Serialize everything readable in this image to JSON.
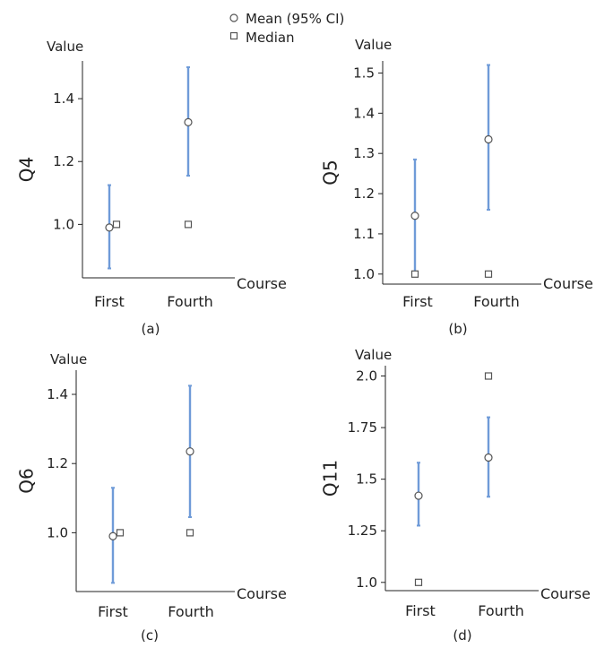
{
  "legend": {
    "mean_label": "Mean (95% CI)",
    "median_label": "Median",
    "placement": "top-center"
  },
  "colors": {
    "ci": "#6f9bd8",
    "axis": "#222222",
    "marker_edge": "#555555"
  },
  "chart_data": [
    {
      "type": "scatter",
      "panel_label": "(a)",
      "ylabel": "Q4",
      "axis_title": "Value",
      "xlabel": "Course",
      "categories": [
        "First",
        "Fourth"
      ],
      "ylim": [
        0.83,
        1.52
      ],
      "yticks": [
        1.0,
        1.2,
        1.4
      ],
      "ytick_labels": [
        "1.0",
        "1.2",
        "1.4"
      ],
      "mean": [
        0.99,
        1.325
      ],
      "ci_low": [
        0.86,
        1.155
      ],
      "ci_high": [
        1.125,
        1.5
      ],
      "median": [
        1.0,
        1.0
      ],
      "grid": false
    },
    {
      "type": "scatter",
      "panel_label": "(b)",
      "ylabel": "Q5",
      "axis_title": "Value",
      "xlabel": "Course",
      "categories": [
        "First",
        "Fourth"
      ],
      "ylim": [
        0.975,
        1.53
      ],
      "yticks": [
        1.0,
        1.1,
        1.2,
        1.3,
        1.4,
        1.5
      ],
      "ytick_labels": [
        "1.0",
        "1.1",
        "1.2",
        "1.3",
        "1.4",
        "1.5"
      ],
      "mean": [
        1.145,
        1.335
      ],
      "ci_low": [
        1.005,
        1.16
      ],
      "ci_high": [
        1.285,
        1.52
      ],
      "median": [
        1.0,
        1.0
      ],
      "grid": false
    },
    {
      "type": "scatter",
      "panel_label": "(c)",
      "ylabel": "Q6",
      "axis_title": "Value",
      "xlabel": "Course",
      "categories": [
        "First",
        "Fourth"
      ],
      "ylim": [
        0.83,
        1.47
      ],
      "yticks": [
        1.0,
        1.2,
        1.4
      ],
      "ytick_labels": [
        "1.0",
        "1.2",
        "1.4"
      ],
      "mean": [
        0.99,
        1.235
      ],
      "ci_low": [
        0.855,
        1.045
      ],
      "ci_high": [
        1.13,
        1.425
      ],
      "median": [
        1.0,
        1.0
      ],
      "grid": false
    },
    {
      "type": "scatter",
      "panel_label": "(d)",
      "ylabel": "Q11",
      "axis_title": "Value",
      "xlabel": "Course",
      "categories": [
        "First",
        "Fourth"
      ],
      "ylim": [
        0.96,
        2.05
      ],
      "yticks": [
        1.0,
        1.25,
        1.5,
        1.75,
        2.0
      ],
      "ytick_labels": [
        "1.0",
        "1.25",
        "1.5",
        "1.75",
        "2.0"
      ],
      "mean": [
        1.42,
        1.605
      ],
      "ci_low": [
        1.275,
        1.415
      ],
      "ci_high": [
        1.58,
        1.8
      ],
      "median": [
        1.0,
        2.0
      ],
      "grid": false
    }
  ]
}
